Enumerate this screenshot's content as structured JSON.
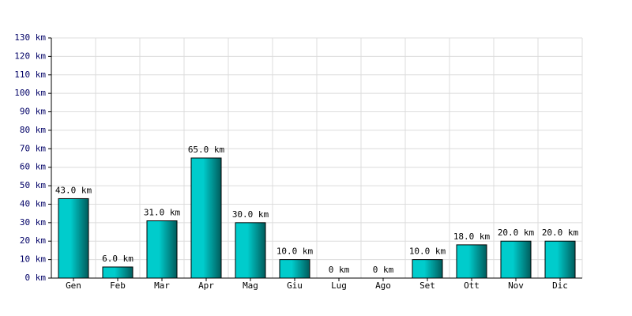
{
  "chart_data": {
    "type": "bar",
    "categories": [
      "Gen",
      "Feb",
      "Mar",
      "Apr",
      "Mag",
      "Giu",
      "Lug",
      "Ago",
      "Set",
      "Ott",
      "Nov",
      "Dic"
    ],
    "values": [
      43,
      6,
      31,
      65,
      30,
      10,
      0,
      0,
      10,
      18,
      20,
      20
    ],
    "value_labels": [
      "43.0 km",
      "6.0 km",
      "31.0 km",
      "65.0 km",
      "30.0 km",
      "10.0 km",
      "0 km",
      "0 km",
      "10.0 km",
      "18.0 km",
      "20.0 km",
      "20.0 km"
    ],
    "color": "#00cccc",
    "ylim": [
      0,
      130
    ],
    "yticks": [
      {
        "value": 0,
        "label": "0 km"
      },
      {
        "value": 10,
        "label": "10 km"
      },
      {
        "value": 20,
        "label": "20 km"
      },
      {
        "value": 30,
        "label": "30 km"
      },
      {
        "value": 40,
        "label": "40 km"
      },
      {
        "value": 50,
        "label": "50 km"
      },
      {
        "value": 60,
        "label": "60 km"
      },
      {
        "value": 70,
        "label": "70 km"
      },
      {
        "value": 80,
        "label": "80 km"
      },
      {
        "value": 90,
        "label": "90 km"
      },
      {
        "value": 100,
        "label": "100 km"
      },
      {
        "value": 110,
        "label": "110 km"
      },
      {
        "value": 120,
        "label": "120 km"
      },
      {
        "value": 130,
        "label": "130 km"
      }
    ],
    "grid": true
  }
}
